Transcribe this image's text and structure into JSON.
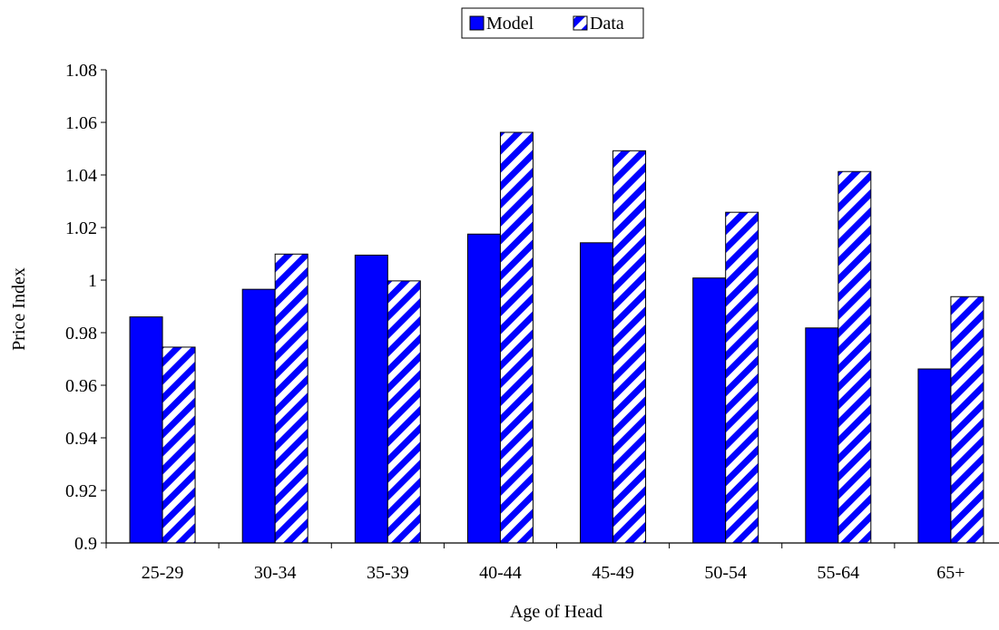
{
  "chart_data": {
    "type": "bar",
    "xlabel": "Age of Head",
    "ylabel": "Price Index",
    "categories": [
      "25-29",
      "30-34",
      "35-39",
      "40-44",
      "45-49",
      "50-54",
      "55-64",
      "65+"
    ],
    "ylim": [
      0.9,
      1.08
    ],
    "yticks": [
      0.9,
      0.92,
      0.94,
      0.96,
      0.98,
      1,
      1.02,
      1.04,
      1.06,
      1.08
    ],
    "ytick_labels": [
      "0.9",
      "0.92",
      "0.94",
      "0.96",
      "0.98",
      "1",
      "1.02",
      "1.04",
      "1.06",
      "1.08"
    ],
    "grid": false,
    "legend_position": "top-center",
    "series": [
      {
        "name": "Model",
        "style": "solid",
        "color": "#0000FF",
        "values": [
          0.986,
          0.9965,
          1.0095,
          1.0175,
          1.0142,
          1.0008,
          0.9818,
          0.9662
        ]
      },
      {
        "name": "Data",
        "style": "diagonal-hatch",
        "color": "#0000FF",
        "values": [
          0.9745,
          1.0099,
          0.9997,
          1.0562,
          1.0492,
          1.0258,
          1.0413,
          0.9937
        ]
      }
    ]
  }
}
